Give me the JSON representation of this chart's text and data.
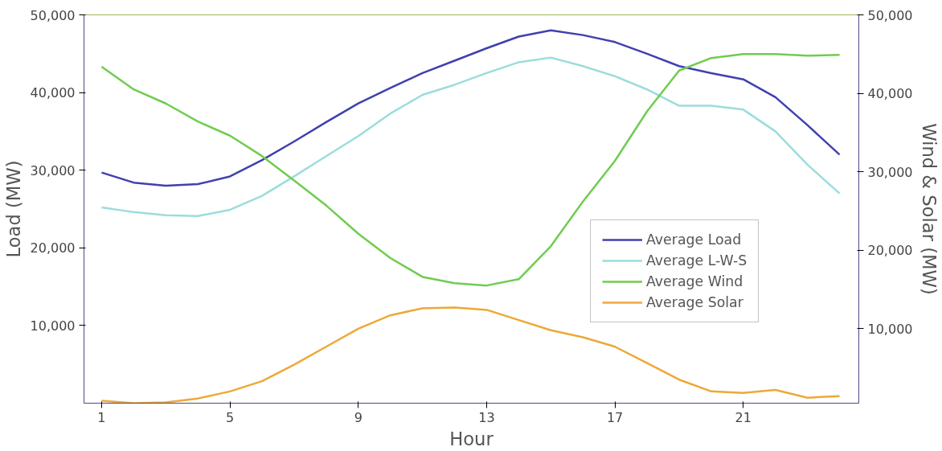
{
  "chart_data": {
    "type": "line",
    "xlabel": "Hour",
    "ylabel": "Load (MW)",
    "y2label": "Wind & Solar (MW)",
    "x": [
      1,
      2,
      3,
      4,
      5,
      6,
      7,
      8,
      9,
      10,
      11,
      12,
      13,
      14,
      15,
      16,
      17,
      18,
      19,
      20,
      21,
      22,
      23,
      24
    ],
    "xlim": [
      0.45,
      24.6
    ],
    "xticks": [
      1,
      5,
      9,
      13,
      17,
      21
    ],
    "ylim": [
      0,
      50000
    ],
    "yticks": [
      {
        "value": 10000,
        "label": "10,000"
      },
      {
        "value": 20000,
        "label": "20,000"
      },
      {
        "value": 30000,
        "label": "30,000"
      },
      {
        "value": 40000,
        "label": "40,000"
      },
      {
        "value": 50000,
        "label": "50,000"
      }
    ],
    "y2lim": [
      500,
      50000
    ],
    "y2ticks": [
      {
        "value": 10000,
        "label": "10,000"
      },
      {
        "value": 20000,
        "label": "20,000"
      },
      {
        "value": 30000,
        "label": "30,000"
      },
      {
        "value": 40000,
        "label": "40,000"
      },
      {
        "value": 50000,
        "label": "50,000"
      }
    ],
    "grid": false,
    "legend": "right",
    "series": [
      {
        "name": "Average Load",
        "color": "#4040b0",
        "values": [
          29700,
          28400,
          28000,
          28200,
          29200,
          31300,
          33700,
          36200,
          38600,
          40600,
          42500,
          44100,
          45700,
          47200,
          48000,
          47400,
          46500,
          45000,
          43400,
          42500,
          41700,
          39400,
          35800,
          32000
        ]
      },
      {
        "name": "Average L-W-S",
        "color": "#9cdcdc",
        "values": [
          25200,
          24600,
          24200,
          24100,
          24900,
          26700,
          29200,
          31800,
          34400,
          37300,
          39700,
          41000,
          42500,
          43900,
          44500,
          43400,
          42100,
          40400,
          38300,
          38300,
          37800,
          35000,
          30700,
          27000
        ]
      },
      {
        "name": "Average Wind",
        "color": "#70cc50",
        "axis": "y2",
        "values": [
          43400,
          40500,
          38700,
          36400,
          34600,
          32000,
          28900,
          25700,
          22100,
          19000,
          16600,
          15800,
          15500,
          16300,
          20500,
          26200,
          31400,
          37700,
          42900,
          44500,
          45000,
          45000,
          44800,
          44900
        ]
      },
      {
        "name": "Average Solar",
        "color": "#eea838",
        "axis": "y2",
        "values": [
          800,
          500,
          600,
          1100,
          2000,
          3300,
          5400,
          7700,
          10000,
          11700,
          12600,
          12700,
          12400,
          11100,
          9800,
          8900,
          7700,
          5600,
          3500,
          2000,
          1800,
          2200,
          1200,
          1400
        ]
      }
    ]
  }
}
